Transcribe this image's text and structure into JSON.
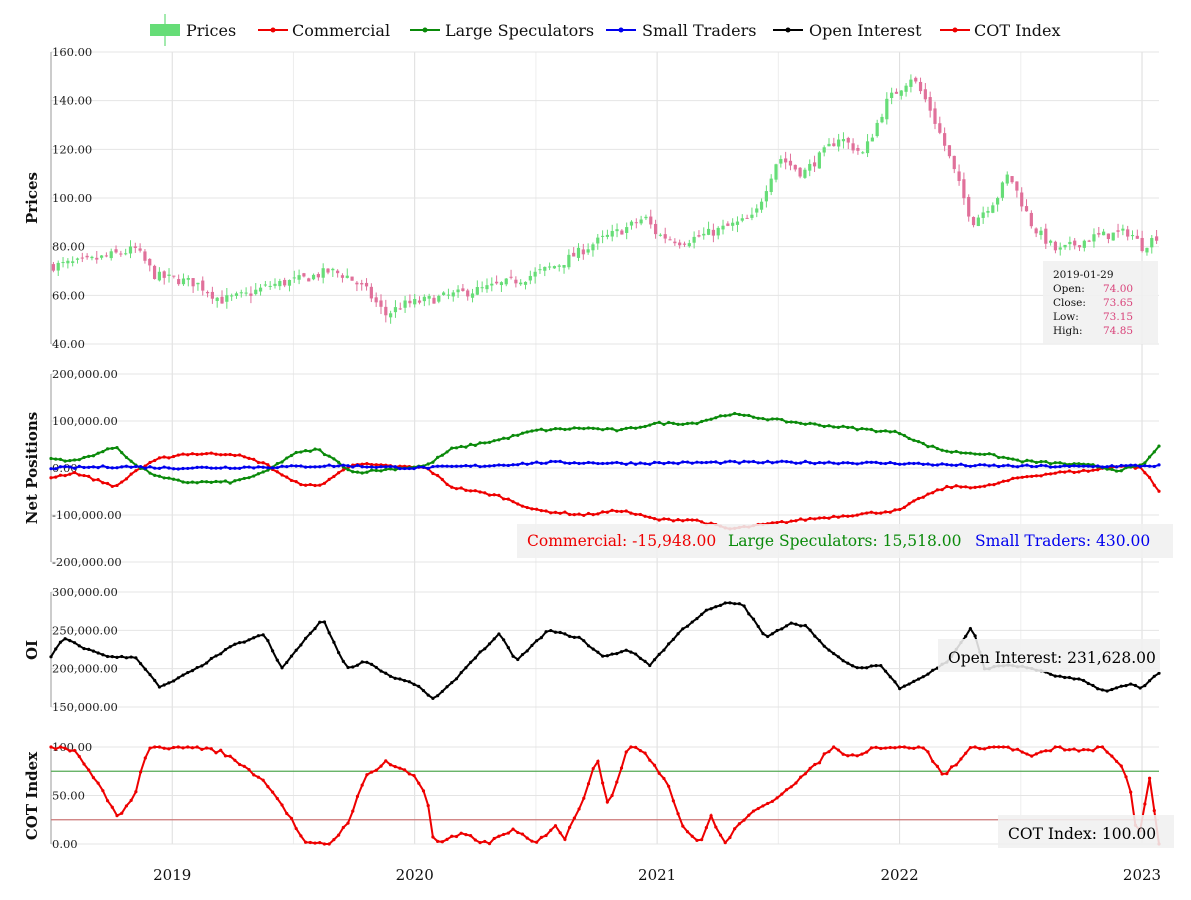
{
  "legend": [
    {
      "label": "Prices",
      "color": "#66dd77",
      "kind": "candle"
    },
    {
      "label": "Commercial",
      "color": "#ee0000",
      "kind": "line"
    },
    {
      "label": "Large Speculators",
      "color": "#0a8a0a",
      "kind": "line"
    },
    {
      "label": "Small Traders",
      "color": "#0000ee",
      "kind": "line"
    },
    {
      "label": "Open Interest",
      "color": "#000000",
      "kind": "line"
    },
    {
      "label": "COT Index",
      "color": "#ee0000",
      "kind": "line"
    }
  ],
  "colors": {
    "up": "#66dd77",
    "down": "#e0709a",
    "commercial": "#ee0000",
    "large": "#0a8a0a",
    "small": "#0000ee",
    "oi": "#000000",
    "cot": "#ee0000",
    "upper_line": "#55aa55",
    "lower_line": "#cc7777"
  },
  "chart_data": [
    {
      "type": "candlestick",
      "name": "Prices",
      "ylabel": "Prices",
      "ylim": [
        40,
        160
      ],
      "yticks": [
        "160.00",
        "140.00",
        "120.00",
        "100.00",
        "80.00",
        "60.00",
        "40.00"
      ],
      "ytick_values": [
        160,
        140,
        120,
        100,
        80,
        60,
        40
      ],
      "x_range": [
        2018.5,
        2023.07
      ],
      "close_anchors": [
        [
          2018.5,
          72
        ],
        [
          2018.65,
          74
        ],
        [
          2018.85,
          79
        ],
        [
          2018.93,
          68
        ],
        [
          2019.1,
          65
        ],
        [
          2019.2,
          58
        ],
        [
          2019.3,
          60
        ],
        [
          2019.4,
          64
        ],
        [
          2019.55,
          67
        ],
        [
          2019.65,
          70
        ],
        [
          2019.72,
          68
        ],
        [
          2019.8,
          62
        ],
        [
          2019.88,
          52
        ],
        [
          2019.95,
          56
        ],
        [
          2020.1,
          59
        ],
        [
          2020.3,
          63
        ],
        [
          2020.45,
          67
        ],
        [
          2020.6,
          73
        ],
        [
          2020.75,
          82
        ],
        [
          2020.88,
          88
        ],
        [
          2020.95,
          92
        ],
        [
          2021.0,
          85
        ],
        [
          2021.1,
          82
        ],
        [
          2021.2,
          85
        ],
        [
          2021.4,
          92
        ],
        [
          2021.5,
          117
        ],
        [
          2021.6,
          110
        ],
        [
          2021.75,
          125
        ],
        [
          2021.85,
          118
        ],
        [
          2021.95,
          140
        ],
        [
          2022.05,
          150
        ],
        [
          2022.12,
          138
        ],
        [
          2022.2,
          118
        ],
        [
          2022.3,
          90
        ],
        [
          2022.4,
          100
        ],
        [
          2022.45,
          110
        ],
        [
          2022.55,
          88
        ],
        [
          2022.65,
          78
        ],
        [
          2022.8,
          84
        ],
        [
          2022.95,
          86
        ],
        [
          2023.0,
          80
        ],
        [
          2023.07,
          85
        ]
      ],
      "tooltip": {
        "date": "2019-01-29",
        "open_label": "Open:",
        "close_label": "Close:",
        "low_label": "Low:",
        "high_label": "High:",
        "open": "74.00",
        "close": "73.65",
        "low": "73.15",
        "high": "74.85"
      }
    },
    {
      "type": "line",
      "name": "Net Positions",
      "ylabel": "Net Positions",
      "ylim": [
        -200000,
        200000
      ],
      "yticks": [
        "200,000.00",
        "100,000.00",
        "0.00",
        "-100,000.00",
        "-200,000.00"
      ],
      "ytick_values": [
        200000,
        100000,
        0,
        -100000,
        -200000
      ],
      "series": [
        {
          "name": "Commercial",
          "color": "#ee0000",
          "anchors": [
            [
              2018.5,
              -20000
            ],
            [
              2018.6,
              -10000
            ],
            [
              2018.77,
              -40000
            ],
            [
              2018.85,
              -5000
            ],
            [
              2018.95,
              20000
            ],
            [
              2019.05,
              30000
            ],
            [
              2019.25,
              30000
            ],
            [
              2019.38,
              10000
            ],
            [
              2019.5,
              -30000
            ],
            [
              2019.6,
              -40000
            ],
            [
              2019.75,
              10000
            ],
            [
              2019.85,
              5000
            ],
            [
              2020.05,
              0
            ],
            [
              2020.15,
              -40000
            ],
            [
              2020.35,
              -60000
            ],
            [
              2020.5,
              -90000
            ],
            [
              2020.7,
              -100000
            ],
            [
              2020.85,
              -90000
            ],
            [
              2021.0,
              -110000
            ],
            [
              2021.15,
              -110000
            ],
            [
              2021.3,
              -130000
            ],
            [
              2021.45,
              -120000
            ],
            [
              2021.6,
              -110000
            ],
            [
              2021.8,
              -100000
            ],
            [
              2022.0,
              -90000
            ],
            [
              2022.1,
              -60000
            ],
            [
              2022.2,
              -40000
            ],
            [
              2022.35,
              -40000
            ],
            [
              2022.5,
              -20000
            ],
            [
              2022.65,
              -10000
            ],
            [
              2022.8,
              -5000
            ],
            [
              2022.9,
              5000
            ],
            [
              2023.0,
              0
            ],
            [
              2023.07,
              -50000
            ]
          ]
        },
        {
          "name": "Large Speculators",
          "color": "#0a8a0a",
          "anchors": [
            [
              2018.5,
              20000
            ],
            [
              2018.6,
              15000
            ],
            [
              2018.77,
              45000
            ],
            [
              2018.85,
              5000
            ],
            [
              2018.95,
              -20000
            ],
            [
              2019.05,
              -30000
            ],
            [
              2019.25,
              -30000
            ],
            [
              2019.38,
              -10000
            ],
            [
              2019.5,
              30000
            ],
            [
              2019.6,
              40000
            ],
            [
              2019.75,
              -10000
            ],
            [
              2019.85,
              -5000
            ],
            [
              2020.05,
              5000
            ],
            [
              2020.15,
              40000
            ],
            [
              2020.35,
              60000
            ],
            [
              2020.5,
              80000
            ],
            [
              2020.7,
              85000
            ],
            [
              2020.85,
              80000
            ],
            [
              2021.0,
              95000
            ],
            [
              2021.15,
              95000
            ],
            [
              2021.3,
              115000
            ],
            [
              2021.45,
              105000
            ],
            [
              2021.6,
              95000
            ],
            [
              2021.8,
              85000
            ],
            [
              2022.0,
              75000
            ],
            [
              2022.1,
              50000
            ],
            [
              2022.2,
              35000
            ],
            [
              2022.35,
              30000
            ],
            [
              2022.5,
              15000
            ],
            [
              2022.65,
              10000
            ],
            [
              2022.8,
              5000
            ],
            [
              2022.9,
              -5000
            ],
            [
              2023.0,
              5000
            ],
            [
              2023.07,
              45000
            ]
          ]
        },
        {
          "name": "Small Traders",
          "color": "#0000ee",
          "anchors": [
            [
              2018.5,
              0
            ],
            [
              2018.8,
              3000
            ],
            [
              2019.0,
              0
            ],
            [
              2019.4,
              2000
            ],
            [
              2019.7,
              5000
            ],
            [
              2020.0,
              0
            ],
            [
              2020.3,
              5000
            ],
            [
              2020.55,
              12000
            ],
            [
              2020.9,
              10000
            ],
            [
              2021.3,
              12000
            ],
            [
              2021.6,
              12000
            ],
            [
              2022.0,
              10000
            ],
            [
              2022.3,
              5000
            ],
            [
              2022.7,
              3000
            ],
            [
              2023.07,
              5000
            ]
          ]
        }
      ],
      "tooltip": {
        "commercial": "Commercial: -15,948.00",
        "large": "Large Speculators: 15,518.00",
        "small": "Small Traders: 430.00"
      }
    },
    {
      "type": "line",
      "name": "OI",
      "ylabel": "OI",
      "ylim": [
        150000,
        300000
      ],
      "yticks": [
        "300,000.00",
        "250,000.00",
        "200,000.00",
        "150,000.00"
      ],
      "ytick_values": [
        300000,
        250000,
        200000,
        150000
      ],
      "series": [
        {
          "name": "Open Interest",
          "color": "#000000",
          "anchors": [
            [
              2018.5,
              215000
            ],
            [
              2018.55,
              240000
            ],
            [
              2018.65,
              225000
            ],
            [
              2018.75,
              215000
            ],
            [
              2018.85,
              215000
            ],
            [
              2018.95,
              175000
            ],
            [
              2019.1,
              200000
            ],
            [
              2019.25,
              230000
            ],
            [
              2019.38,
              245000
            ],
            [
              2019.45,
              200000
            ],
            [
              2019.58,
              250000
            ],
            [
              2019.62,
              265000
            ],
            [
              2019.72,
              200000
            ],
            [
              2019.8,
              210000
            ],
            [
              2019.9,
              190000
            ],
            [
              2020.0,
              180000
            ],
            [
              2020.08,
              160000
            ],
            [
              2020.15,
              180000
            ],
            [
              2020.25,
              215000
            ],
            [
              2020.35,
              245000
            ],
            [
              2020.42,
              210000
            ],
            [
              2020.55,
              250000
            ],
            [
              2020.68,
              240000
            ],
            [
              2020.78,
              215000
            ],
            [
              2020.88,
              225000
            ],
            [
              2020.97,
              205000
            ],
            [
              2021.1,
              250000
            ],
            [
              2021.2,
              275000
            ],
            [
              2021.28,
              285000
            ],
            [
              2021.35,
              285000
            ],
            [
              2021.45,
              240000
            ],
            [
              2021.55,
              260000
            ],
            [
              2021.62,
              255000
            ],
            [
              2021.7,
              225000
            ],
            [
              2021.82,
              200000
            ],
            [
              2021.92,
              205000
            ],
            [
              2022.0,
              175000
            ],
            [
              2022.1,
              190000
            ],
            [
              2022.2,
              210000
            ],
            [
              2022.3,
              255000
            ],
            [
              2022.35,
              200000
            ],
            [
              2022.45,
              205000
            ],
            [
              2022.55,
              200000
            ],
            [
              2022.65,
              190000
            ],
            [
              2022.75,
              185000
            ],
            [
              2022.85,
              170000
            ],
            [
              2022.95,
              180000
            ],
            [
              2023.0,
              175000
            ],
            [
              2023.07,
              195000
            ]
          ]
        }
      ],
      "tooltip": {
        "text": "Open Interest: 231,628.00"
      }
    },
    {
      "type": "line",
      "name": "COT Index",
      "ylabel": "COT Index",
      "ylim": [
        0,
        100
      ],
      "yticks": [
        "100.00",
        "50.00",
        "0.00"
      ],
      "ytick_values": [
        100,
        50,
        0
      ],
      "hlines": [
        75,
        25
      ],
      "series": [
        {
          "name": "COT Index",
          "color": "#ee0000",
          "anchors": [
            [
              2018.5,
              100
            ],
            [
              2018.6,
              95
            ],
            [
              2018.7,
              60
            ],
            [
              2018.78,
              25
            ],
            [
              2018.85,
              55
            ],
            [
              2018.9,
              100
            ],
            [
              2019.1,
              100
            ],
            [
              2019.2,
              95
            ],
            [
              2019.3,
              80
            ],
            [
              2019.4,
              60
            ],
            [
              2019.48,
              30
            ],
            [
              2019.55,
              0
            ],
            [
              2019.65,
              0
            ],
            [
              2019.72,
              20
            ],
            [
              2019.8,
              70
            ],
            [
              2019.88,
              85
            ],
            [
              2020.0,
              70
            ],
            [
              2020.05,
              50
            ],
            [
              2020.08,
              0
            ],
            [
              2020.2,
              10
            ],
            [
              2020.3,
              0
            ],
            [
              2020.4,
              15
            ],
            [
              2020.5,
              0
            ],
            [
              2020.58,
              20
            ],
            [
              2020.62,
              5
            ],
            [
              2020.7,
              50
            ],
            [
              2020.75,
              90
            ],
            [
              2020.8,
              40
            ],
            [
              2020.88,
              100
            ],
            [
              2020.95,
              95
            ],
            [
              2021.05,
              60
            ],
            [
              2021.1,
              20
            ],
            [
              2021.18,
              0
            ],
            [
              2021.22,
              30
            ],
            [
              2021.28,
              0
            ],
            [
              2021.35,
              25
            ],
            [
              2021.45,
              40
            ],
            [
              2021.55,
              60
            ],
            [
              2021.65,
              80
            ],
            [
              2021.72,
              100
            ],
            [
              2021.8,
              90
            ],
            [
              2021.9,
              100
            ],
            [
              2022.0,
              100
            ],
            [
              2022.1,
              100
            ],
            [
              2022.18,
              70
            ],
            [
              2022.3,
              100
            ],
            [
              2022.45,
              100
            ],
            [
              2022.55,
              90
            ],
            [
              2022.65,
              100
            ],
            [
              2022.75,
              95
            ],
            [
              2022.83,
              100
            ],
            [
              2022.92,
              80
            ],
            [
              2022.96,
              50
            ],
            [
              2022.98,
              0
            ],
            [
              2023.0,
              20
            ],
            [
              2023.03,
              70
            ],
            [
              2023.07,
              0
            ]
          ]
        }
      ],
      "tooltip": {
        "text": "COT Index: 100.00"
      }
    }
  ],
  "xaxis": {
    "labels": [
      "2019",
      "2020",
      "2021",
      "2022",
      "2023"
    ],
    "values": [
      2019,
      2020,
      2021,
      2022,
      2023
    ]
  }
}
